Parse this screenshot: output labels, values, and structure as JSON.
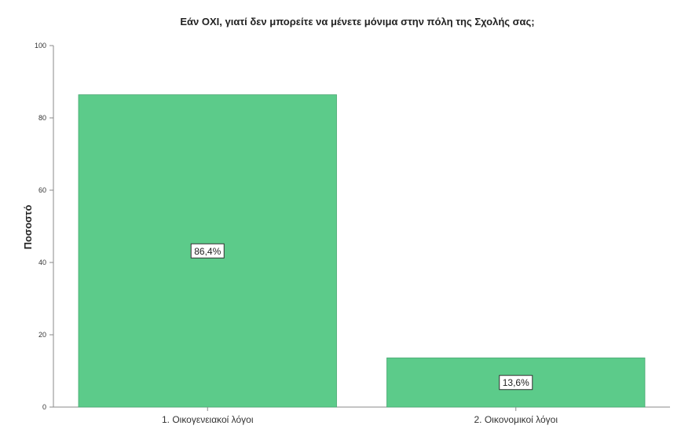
{
  "chart_data": {
    "type": "bar",
    "title": "Εάν ΟΧΙ, γιατί δεν μπορείτε  να μένετε μόνιμα  στην πόλη της Σχολής σας;",
    "xlabel": "",
    "ylabel": "Ποσοστό",
    "categories": [
      "1. Οικογενειακοί λόγοι",
      "2. Οικονομικοί λόγοι"
    ],
    "values": [
      86.4,
      13.6
    ],
    "data_labels": [
      "86,4%",
      "13,6%"
    ],
    "ylim": [
      0,
      100
    ],
    "yticks": [
      0,
      20,
      40,
      60,
      80,
      100
    ],
    "grid": false,
    "legend": "none",
    "bar_color": "#5ccb8a",
    "bar_edge_color": "#4aa873"
  }
}
